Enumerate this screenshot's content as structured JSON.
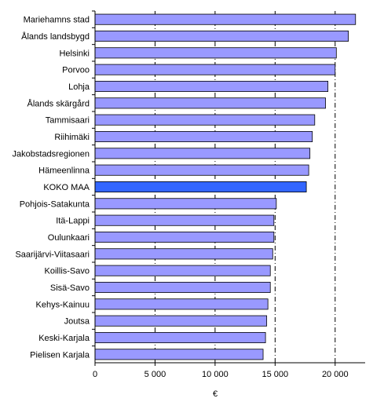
{
  "chart_data": {
    "type": "bar",
    "orientation": "horizontal",
    "title": "",
    "xlabel": "€",
    "ylabel": "",
    "xlim": [
      0,
      22500
    ],
    "x_ticks": [
      0,
      5000,
      10000,
      15000,
      20000
    ],
    "x_tick_labels": [
      "0",
      "5 000",
      "10 000",
      "15 000",
      "20 000"
    ],
    "gridlines": "vertical dashed at 5 000, 10 000, 15 000, 20 000",
    "legend": "none",
    "categories": [
      "Mariehamns stad",
      "Ålands landsbygd",
      "Helsinki",
      "Porvoo",
      "Lohja",
      "Ålands skärgård",
      "Tammisaari",
      "Riihimäki",
      "Jakobstadsregionen",
      "Hämeenlinna",
      "KOKO MAA",
      "Pohjois-Satakunta",
      "Itä-Lappi",
      "Oulunkaari",
      "Saarijärvi-Viitasaari",
      "Koillis-Savo",
      "Sisä-Savo",
      "Kehys-Kainuu",
      "Joutsa",
      "Keski-Karjala",
      "Pielisen Karjala"
    ],
    "values": [
      21700,
      21100,
      20100,
      20000,
      19400,
      19200,
      18300,
      18100,
      17900,
      17800,
      17600,
      15100,
      14900,
      14900,
      14800,
      14600,
      14600,
      14400,
      14300,
      14200,
      14000
    ],
    "highlight_category": "KOKO MAA",
    "colors": {
      "bar": "#9999FF",
      "highlight": "#3366FF",
      "bar_edge": "#000000",
      "grid": "#000000"
    }
  }
}
